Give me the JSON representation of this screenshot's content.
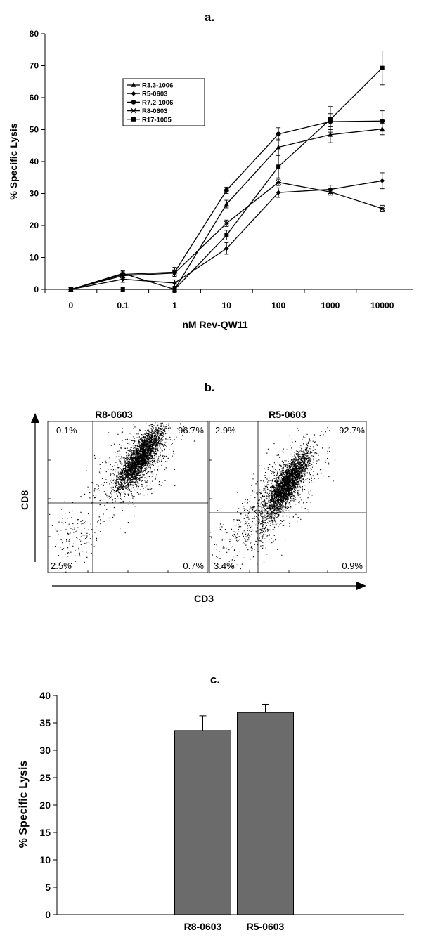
{
  "panel_a": {
    "title": "a.",
    "chart_data": {
      "type": "line",
      "xlabel": "nM Rev-QW11",
      "ylabel": "% Specific Lysis",
      "categories": [
        "0",
        "0.1",
        "1",
        "10",
        "100",
        "1000",
        "10000"
      ],
      "ylim": [
        0,
        80
      ],
      "yticks": [
        "0",
        "10",
        "20",
        "30",
        "40",
        "50",
        "60",
        "70",
        "80"
      ],
      "legend_position": "upper-left",
      "series": [
        {
          "name": "R3.3-1006",
          "marker": "triangle",
          "values": [
            0,
            5,
            0,
            26.7,
            44.5,
            48.4,
            50.2
          ],
          "errors": [
            0.5,
            0.8,
            1,
            1.2,
            2.5,
            2.5,
            1.8
          ]
        },
        {
          "name": "R5-0603",
          "marker": "diamond",
          "values": [
            0,
            3.2,
            2,
            12.8,
            30.3,
            31.3,
            34.0
          ],
          "errors": [
            0.5,
            1,
            1,
            1.8,
            1.5,
            1.3,
            2.5
          ]
        },
        {
          "name": "R7.2-1006",
          "marker": "circle",
          "values": [
            0,
            4.7,
            5.4,
            31.0,
            48.6,
            52.5,
            52.7
          ],
          "errors": [
            0.5,
            1,
            1.5,
            1,
            2,
            2.5,
            3.2
          ]
        },
        {
          "name": "R8-0603",
          "marker": "star",
          "values": [
            0,
            4.3,
            5.1,
            20.7,
            33.5,
            30.5,
            25.3
          ],
          "errors": [
            0.5,
            1,
            1,
            1,
            1,
            1,
            1
          ]
        },
        {
          "name": "R17-1005",
          "marker": "square",
          "values": [
            0,
            0,
            0,
            17.0,
            38.4,
            53.2,
            69.3
          ],
          "errors": [
            0.5,
            0.5,
            0.5,
            1.5,
            3.5,
            4,
            5.3
          ]
        }
      ]
    }
  },
  "panel_b": {
    "title": "b.",
    "xlabel": "CD3",
    "ylabel": "CD8",
    "plots": [
      {
        "title": "R8-0603",
        "ul": "0.1%",
        "ur": "96.7%",
        "ll": "2.5%",
        "lr": "0.7%"
      },
      {
        "title": "R5-0603",
        "ul": "2.9%",
        "ur": "92.7%",
        "ll": "3.4%",
        "lr": "0.9%"
      }
    ]
  },
  "panel_c": {
    "title": "c.",
    "chart_data": {
      "type": "bar",
      "ylabel": "% Specific Lysis",
      "categories": [
        "R8-0603",
        "R5-0603"
      ],
      "values": [
        33.6,
        36.9
      ],
      "errors": [
        2.7,
        1.5
      ],
      "ylim": [
        0,
        40
      ],
      "yticks": [
        "0",
        "5",
        "10",
        "15",
        "20",
        "25",
        "30",
        "35",
        "40"
      ],
      "bar_color": "#6b6b6b"
    }
  }
}
